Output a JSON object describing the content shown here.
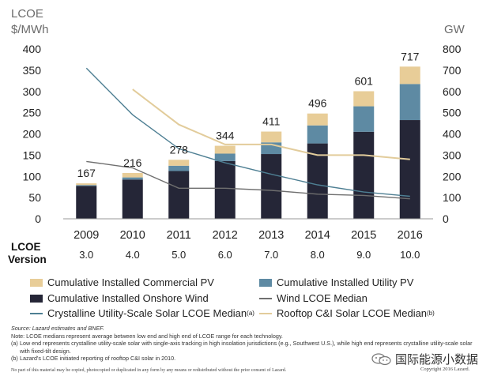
{
  "chart_data": {
    "type": "bar+line",
    "left_axis_title_line1": "LCOE",
    "left_axis_title_line2": "$/MWh",
    "right_axis_title": "GW",
    "left_ylim": [
      0,
      400
    ],
    "right_ylim": [
      0,
      800
    ],
    "left_ticks": [
      "400",
      "350",
      "300",
      "250",
      "200",
      "150",
      "100",
      "50",
      "0"
    ],
    "right_ticks": [
      "800",
      "700",
      "600",
      "500",
      "400",
      "300",
      "200",
      "100",
      "0"
    ],
    "categories": [
      "2009",
      "2010",
      "2011",
      "2012",
      "2013",
      "2014",
      "2015",
      "2016"
    ],
    "version_label_line1": "LCOE",
    "version_label_line2": "Version",
    "versions": [
      "3.0",
      "4.0",
      "5.0",
      "6.0",
      "7.0",
      "8.0",
      "9.0",
      "10.0"
    ],
    "bar_series": [
      {
        "name": "Cumulative Installed Onshore Wind",
        "color": "#252637",
        "values_gw": [
          155,
          185,
          225,
          272,
          305,
          355,
          410,
          465
        ]
      },
      {
        "name": "Cumulative Installed Utility PV",
        "color": "#5e8aa3",
        "values_gw": [
          4,
          10,
          25,
          35,
          55,
          85,
          120,
          170
        ]
      },
      {
        "name": "Cumulative Installed Commercial PV",
        "color": "#e8cd98",
        "values_gw": [
          8,
          21,
          28,
          37,
          51,
          56,
          71,
          82
        ]
      }
    ],
    "bar_totals": [
      "167",
      "216",
      "278",
      "344",
      "411",
      "496",
      "601",
      "717"
    ],
    "line_series": [
      {
        "name": "Crystalline Utility-Scale Solar LCOE Median",
        "superscript": "(a)",
        "color": "#4e7f93",
        "values": [
          355,
          245,
          165,
          132,
          105,
          80,
          63,
          53
        ]
      },
      {
        "name": "Wind LCOE Median",
        "color": "#6f6f6f",
        "values": [
          135,
          120,
          72,
          72,
          67,
          58,
          55,
          47
        ]
      },
      {
        "name": "Rooftop C&I Solar LCOE Median",
        "superscript": "(b)",
        "color": "#e2cc9b",
        "values": [
          null,
          305,
          222,
          175,
          175,
          150,
          150,
          140
        ]
      }
    ]
  },
  "legend": {
    "commercial_pv": "Cumulative Installed Commercial PV",
    "utility_pv": "Cumulative Installed Utility PV",
    "onshore_wind": "Cumulative Installed Onshore Wind",
    "wind_lcoe": "Wind LCOE Median",
    "utility_solar_lcoe": "Crystalline Utility-Scale Solar LCOE Median",
    "utility_solar_sup": "(a)",
    "rooftop_lcoe": "Rooftop C&I Solar LCOE Median",
    "rooftop_sup": "(b)"
  },
  "notes": {
    "source": "Source:  Lazard estimates and BNEF.",
    "note": "Note:  LCOE medians represent average between low end and high end of LCOE range for each technology.",
    "a_key": "(a)",
    "a_text": "Low end represents crystalline utility-scale solar with single-axis tracking in high insolation jurisdictions (e.g., Southwest U.S.), while high end represents crystalline utility-scale solar with fixed-tilt design.",
    "b_key": "(b)",
    "b_text": "Lazard's LCOE initiated reporting of rooftop C&I solar in 2010.",
    "footer": "No part of this material may be copied, photocopied or duplicated in any form by any means or redistributed without the prior consent of Lazard.",
    "copyright": "Copyright 2016 Lazard."
  },
  "brand": {
    "text": "国际能源小数据",
    "icon": "wechat-icon"
  }
}
